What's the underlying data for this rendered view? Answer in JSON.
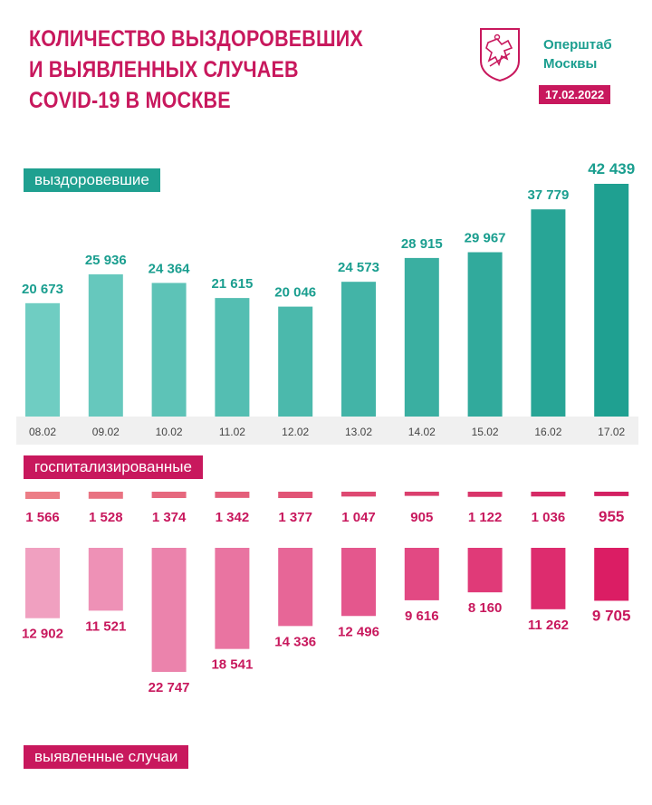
{
  "header": {
    "title_lines": [
      "КОЛИЧЕСТВО ВЫЗДОРОВЕВШИХ",
      "И ВЫЯВЛЕННЫХ СЛУЧАЕВ",
      "COVID-19 В МОСКВЕ"
    ],
    "brand_lines": [
      "Оперштаб",
      "Москвы"
    ],
    "date": "17.02.2022"
  },
  "labels": {
    "recovered": "выздоровевшие",
    "hospitalized": "госпитализированные",
    "detected": "выявленные случаи"
  },
  "colors": {
    "title": "#c8185d",
    "recovered_bar": "#3fb8ab",
    "recovered_text": "#1a9e8f",
    "hospitalized_text": "#c8185d",
    "detected_text": "#c8185d",
    "accent": "#c8185d"
  },
  "chart_data": [
    {
      "type": "bar",
      "name": "выздоровевшие",
      "categories": [
        "08.02",
        "09.02",
        "10.02",
        "11.02",
        "12.02",
        "13.02",
        "14.02",
        "15.02",
        "16.02",
        "17.02"
      ],
      "values": [
        20673,
        25936,
        24364,
        21615,
        20046,
        24573,
        28915,
        29967,
        37779,
        42439
      ],
      "value_labels": [
        "20 673",
        "25 936",
        "24 364",
        "21 615",
        "20 046",
        "24 573",
        "28 915",
        "29 967",
        "37 779",
        "42 439"
      ],
      "ylim": [
        0,
        42439
      ]
    },
    {
      "type": "bar",
      "name": "госпитализированные",
      "categories": [
        "08.02",
        "09.02",
        "10.02",
        "11.02",
        "12.02",
        "13.02",
        "14.02",
        "15.02",
        "16.02",
        "17.02"
      ],
      "values": [
        1566,
        1528,
        1374,
        1342,
        1377,
        1047,
        905,
        1122,
        1036,
        955
      ],
      "value_labels": [
        "1 566",
        "1 528",
        "1 374",
        "1 342",
        "1 377",
        "1 047",
        "905",
        "1 122",
        "1 036",
        "955"
      ]
    },
    {
      "type": "bar",
      "name": "выявленные случаи",
      "categories": [
        "08.02",
        "09.02",
        "10.02",
        "11.02",
        "12.02",
        "13.02",
        "14.02",
        "15.02",
        "16.02",
        "17.02"
      ],
      "values": [
        12902,
        11521,
        22747,
        18541,
        14336,
        12496,
        9616,
        8160,
        11262,
        9705
      ],
      "value_labels": [
        "12 902",
        "11 521",
        "22 747",
        "18 541",
        "14 336",
        "12 496",
        "9 616",
        "8 160",
        "11 262",
        "9 705"
      ],
      "ylim": [
        0,
        22747
      ]
    }
  ]
}
